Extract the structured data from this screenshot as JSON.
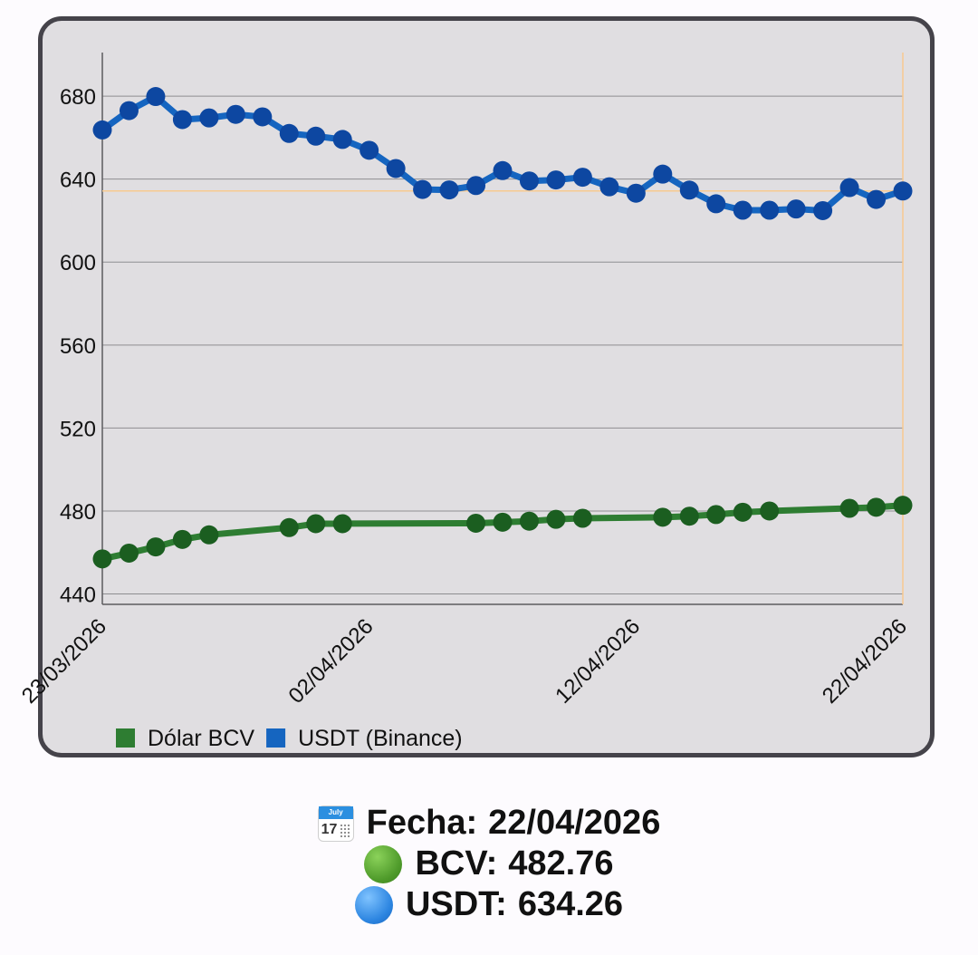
{
  "chart_data": {
    "type": "line",
    "title": "",
    "xlabel": "",
    "ylabel": "",
    "ylim": [
      435,
      701
    ],
    "y_ticks": [
      "440",
      "480",
      "520",
      "560",
      "600",
      "640",
      "680"
    ],
    "x_tick_labels": [
      "23/03/2026",
      "02/04/2026",
      "12/04/2026",
      "22/04/2026"
    ],
    "x_range": [
      "23/03/2026",
      "22/04/2026"
    ],
    "grid": true,
    "legend_position": "bottom-left",
    "crosshair": {
      "date": "22/04/2026",
      "y": 634.26,
      "color": "#f7c98f"
    },
    "series": [
      {
        "name": "Dólar BCV",
        "color": "#2e7d32",
        "points": [
          {
            "x": "23/03/2026",
            "y": 456.9
          },
          {
            "x": "24/03/2026",
            "y": 459.7
          },
          {
            "x": "25/03/2026",
            "y": 462.7
          },
          {
            "x": "26/03/2026",
            "y": 466.3
          },
          {
            "x": "27/03/2026",
            "y": 468.5
          },
          {
            "x": "30/03/2026",
            "y": 472.0
          },
          {
            "x": "31/03/2026",
            "y": 473.9
          },
          {
            "x": "01/04/2026",
            "y": 473.9
          },
          {
            "x": "06/04/2026",
            "y": 474.1
          },
          {
            "x": "07/04/2026",
            "y": 474.6
          },
          {
            "x": "08/04/2026",
            "y": 475.1
          },
          {
            "x": "09/04/2026",
            "y": 476.0
          },
          {
            "x": "10/04/2026",
            "y": 476.5
          },
          {
            "x": "13/04/2026",
            "y": 477.0
          },
          {
            "x": "14/04/2026",
            "y": 477.5
          },
          {
            "x": "15/04/2026",
            "y": 478.3
          },
          {
            "x": "16/04/2026",
            "y": 479.4
          },
          {
            "x": "17/04/2026",
            "y": 480.0
          },
          {
            "x": "20/04/2026",
            "y": 481.3
          },
          {
            "x": "21/04/2026",
            "y": 481.8
          },
          {
            "x": "22/04/2026",
            "y": 482.76
          }
        ]
      },
      {
        "name": "USDT (Binance)",
        "color": "#1565c0",
        "points": [
          {
            "x": "23/03/2026",
            "y": 663.7
          },
          {
            "x": "24/03/2026",
            "y": 673.0
          },
          {
            "x": "25/03/2026",
            "y": 679.8
          },
          {
            "x": "26/03/2026",
            "y": 668.7
          },
          {
            "x": "27/03/2026",
            "y": 669.5
          },
          {
            "x": "28/03/2026",
            "y": 671.2
          },
          {
            "x": "29/03/2026",
            "y": 670.0
          },
          {
            "x": "30/03/2026",
            "y": 662.0
          },
          {
            "x": "31/03/2026",
            "y": 660.7
          },
          {
            "x": "01/04/2026",
            "y": 659.1
          },
          {
            "x": "02/04/2026",
            "y": 653.9
          },
          {
            "x": "03/04/2026",
            "y": 645.1
          },
          {
            "x": "04/04/2026",
            "y": 635.0
          },
          {
            "x": "05/04/2026",
            "y": 634.8
          },
          {
            "x": "06/04/2026",
            "y": 636.9
          },
          {
            "x": "07/04/2026",
            "y": 644.1
          },
          {
            "x": "08/04/2026",
            "y": 639.1
          },
          {
            "x": "09/04/2026",
            "y": 639.6
          },
          {
            "x": "10/04/2026",
            "y": 640.9
          },
          {
            "x": "11/04/2026",
            "y": 636.3
          },
          {
            "x": "12/04/2026",
            "y": 633.2
          },
          {
            "x": "13/04/2026",
            "y": 642.4
          },
          {
            "x": "14/04/2026",
            "y": 634.7
          },
          {
            "x": "15/04/2026",
            "y": 628.1
          },
          {
            "x": "16/04/2026",
            "y": 625.0
          },
          {
            "x": "17/04/2026",
            "y": 625.0
          },
          {
            "x": "18/04/2026",
            "y": 625.6
          },
          {
            "x": "19/04/2026",
            "y": 624.8
          },
          {
            "x": "20/04/2026",
            "y": 635.9
          },
          {
            "x": "21/04/2026",
            "y": 630.2
          },
          {
            "x": "22/04/2026",
            "y": 634.26
          }
        ]
      }
    ]
  },
  "summary": {
    "fecha_label": "Fecha:",
    "fecha_value": "22/04/2026",
    "bcv_label": "BCV:",
    "bcv_value": "482.76",
    "usdt_label": "USDT:",
    "usdt_value": "634.26",
    "calendar_icon_month": "July",
    "calendar_icon_day": "17"
  },
  "icons": {
    "fecha": "calendar-icon",
    "bcv": "green-circle-icon",
    "usdt": "blue-circle-icon"
  }
}
